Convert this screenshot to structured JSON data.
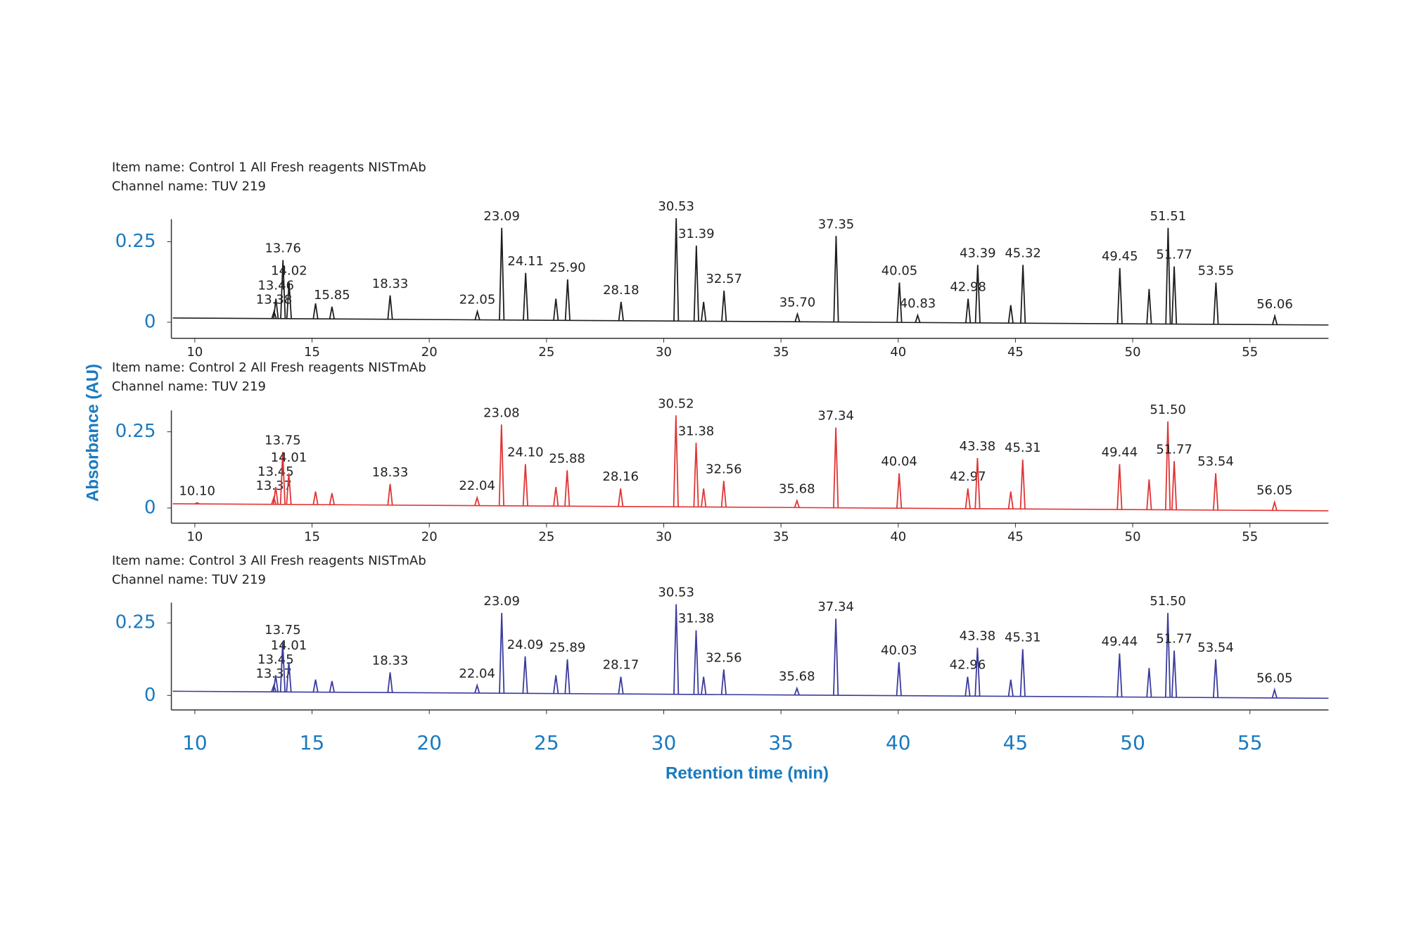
{
  "ylabel": "Absorbance (AU)",
  "xlabel": "Retention time (min)",
  "chart_data": [
    {
      "type": "line",
      "title": "Item name: Control 1 All Fresh reagents NISTmAb",
      "subtitle": "Channel name: TUV 219",
      "color": "#1e1e1e",
      "x": [
        13.38,
        13.46,
        13.76,
        14.02,
        15.85,
        18.33,
        22.05,
        23.09,
        24.11,
        {
          "value": 25.9,
          "label": "25.90"
        },
        28.18,
        30.53,
        31.39,
        32.57,
        {
          "value": 35.7,
          "label": "35.70"
        },
        37.35,
        40.05,
        40.83,
        42.98,
        43.39,
        45.32,
        49.45,
        51.51,
        51.77,
        53.55,
        56.06
      ],
      "values": [
        0.02,
        0.06,
        0.18,
        0.11,
        0.035,
        0.07,
        0.02,
        0.28,
        0.14,
        0.12,
        0.05,
        0.31,
        0.225,
        0.085,
        0.012,
        0.255,
        0.11,
        0.008,
        0.06,
        0.165,
        0.165,
        0.155,
        0.28,
        0.16,
        0.11,
        0.006
      ],
      "unlabeled_peaks": {
        "x": [
          15.15,
          25.4,
          31.7,
          44.8,
          50.7
        ],
        "values": [
          0.045,
          0.06,
          0.05,
          0.04,
          0.09
        ]
      },
      "xlim": [
        9,
        58.35
      ],
      "ylim": [
        -0.05,
        0.32
      ],
      "xticks": [
        10,
        15,
        20,
        25,
        30,
        35,
        40,
        45,
        50,
        55
      ],
      "yticks": [
        0,
        0.25
      ]
    },
    {
      "type": "line",
      "title": "Item name: Control 2 All Fresh reagents NISTmAb",
      "subtitle": "Channel name: TUV 219",
      "color": "#e03535",
      "x": [
        {
          "value": 10.1,
          "label": "10.10"
        },
        13.37,
        13.45,
        13.75,
        14.01,
        18.33,
        22.04,
        23.08,
        {
          "value": 24.1,
          "label": "24.10"
        },
        25.88,
        28.16,
        30.52,
        31.38,
        32.56,
        35.68,
        37.34,
        40.04,
        42.97,
        43.38,
        45.31,
        49.44,
        {
          "value": 51.5,
          "label": "51.50"
        },
        51.77,
        53.54,
        56.05
      ],
      "values": [
        0.003,
        0.02,
        0.055,
        0.17,
        0.1,
        0.065,
        0.02,
        0.26,
        0.13,
        0.11,
        0.05,
        0.29,
        0.2,
        0.075,
        0.01,
        0.25,
        0.1,
        0.05,
        0.15,
        0.145,
        0.13,
        0.27,
        0.14,
        0.1,
        0.005
      ],
      "unlabeled_peaks": {
        "x": [
          15.15,
          15.85,
          25.4,
          31.7,
          44.8,
          50.7
        ],
        "values": [
          0.04,
          0.035,
          0.055,
          0.05,
          0.04,
          0.08
        ]
      },
      "xlim": [
        9,
        58.35
      ],
      "ylim": [
        -0.05,
        0.32
      ],
      "xticks": [
        10,
        15,
        20,
        25,
        30,
        35,
        40,
        45,
        50,
        55
      ],
      "yticks": [
        0,
        0.25
      ]
    },
    {
      "type": "line",
      "title": "Item name: Control 3 All Fresh reagents NISTmAb",
      "subtitle": "Channel name: TUV 219",
      "color": "#3b3b9e",
      "x": [
        13.37,
        13.45,
        13.75,
        14.01,
        18.33,
        22.04,
        23.09,
        24.09,
        25.89,
        28.17,
        30.53,
        31.38,
        32.56,
        35.68,
        37.34,
        40.03,
        42.96,
        43.38,
        45.31,
        49.44,
        {
          "value": 51.5,
          "label": "51.50"
        },
        51.77,
        53.54,
        56.05
      ],
      "values": [
        0.02,
        0.055,
        0.17,
        0.1,
        0.065,
        0.02,
        0.27,
        0.12,
        0.11,
        0.05,
        0.3,
        0.21,
        0.075,
        0.01,
        0.25,
        0.1,
        0.05,
        0.15,
        0.145,
        0.13,
        0.27,
        0.14,
        0.11,
        0.005
      ],
      "unlabeled_peaks": {
        "x": [
          15.15,
          15.85,
          25.4,
          31.7,
          44.8,
          50.7
        ],
        "values": [
          0.04,
          0.035,
          0.055,
          0.05,
          0.04,
          0.08
        ]
      },
      "xlim": [
        9,
        58.35
      ],
      "ylim": [
        -0.05,
        0.32
      ],
      "xticks": [
        10,
        15,
        20,
        25,
        30,
        35,
        40,
        45,
        50,
        55
      ],
      "yticks": [
        0,
        0.25
      ]
    }
  ]
}
